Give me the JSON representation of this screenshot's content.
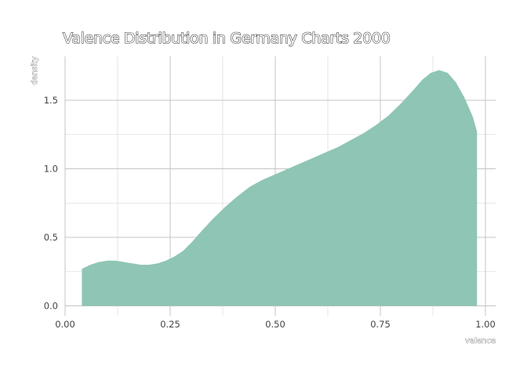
{
  "chart_data": {
    "type": "area",
    "title": "Valence Distribution in Germany Charts 2000",
    "xlabel": "valence",
    "ylabel": "density",
    "xlim": [
      0,
      1
    ],
    "ylim": [
      0,
      1.75
    ],
    "x_ticks": [
      "0.00",
      "0.25",
      "0.50",
      "0.75",
      "1.00"
    ],
    "y_ticks": [
      "0.0",
      "0.5",
      "1.0",
      "1.5"
    ],
    "grid": true,
    "fill_color": "#8fc5b5",
    "series": [
      {
        "x": [
          0.04,
          0.06,
          0.08,
          0.1,
          0.12,
          0.14,
          0.16,
          0.18,
          0.2,
          0.22,
          0.24,
          0.26,
          0.28,
          0.3,
          0.32,
          0.35,
          0.38,
          0.41,
          0.44,
          0.47,
          0.5,
          0.53,
          0.56,
          0.59,
          0.62,
          0.65,
          0.68,
          0.71,
          0.74,
          0.77,
          0.8,
          0.83,
          0.85,
          0.87,
          0.89,
          0.91,
          0.93,
          0.95,
          0.97,
          0.98
        ],
        "values": [
          0.27,
          0.3,
          0.32,
          0.33,
          0.33,
          0.32,
          0.31,
          0.3,
          0.3,
          0.31,
          0.33,
          0.36,
          0.4,
          0.46,
          0.53,
          0.63,
          0.72,
          0.8,
          0.87,
          0.92,
          0.96,
          1.0,
          1.04,
          1.08,
          1.12,
          1.16,
          1.21,
          1.26,
          1.32,
          1.39,
          1.48,
          1.58,
          1.65,
          1.7,
          1.72,
          1.7,
          1.63,
          1.52,
          1.38,
          1.27
        ]
      }
    ]
  }
}
